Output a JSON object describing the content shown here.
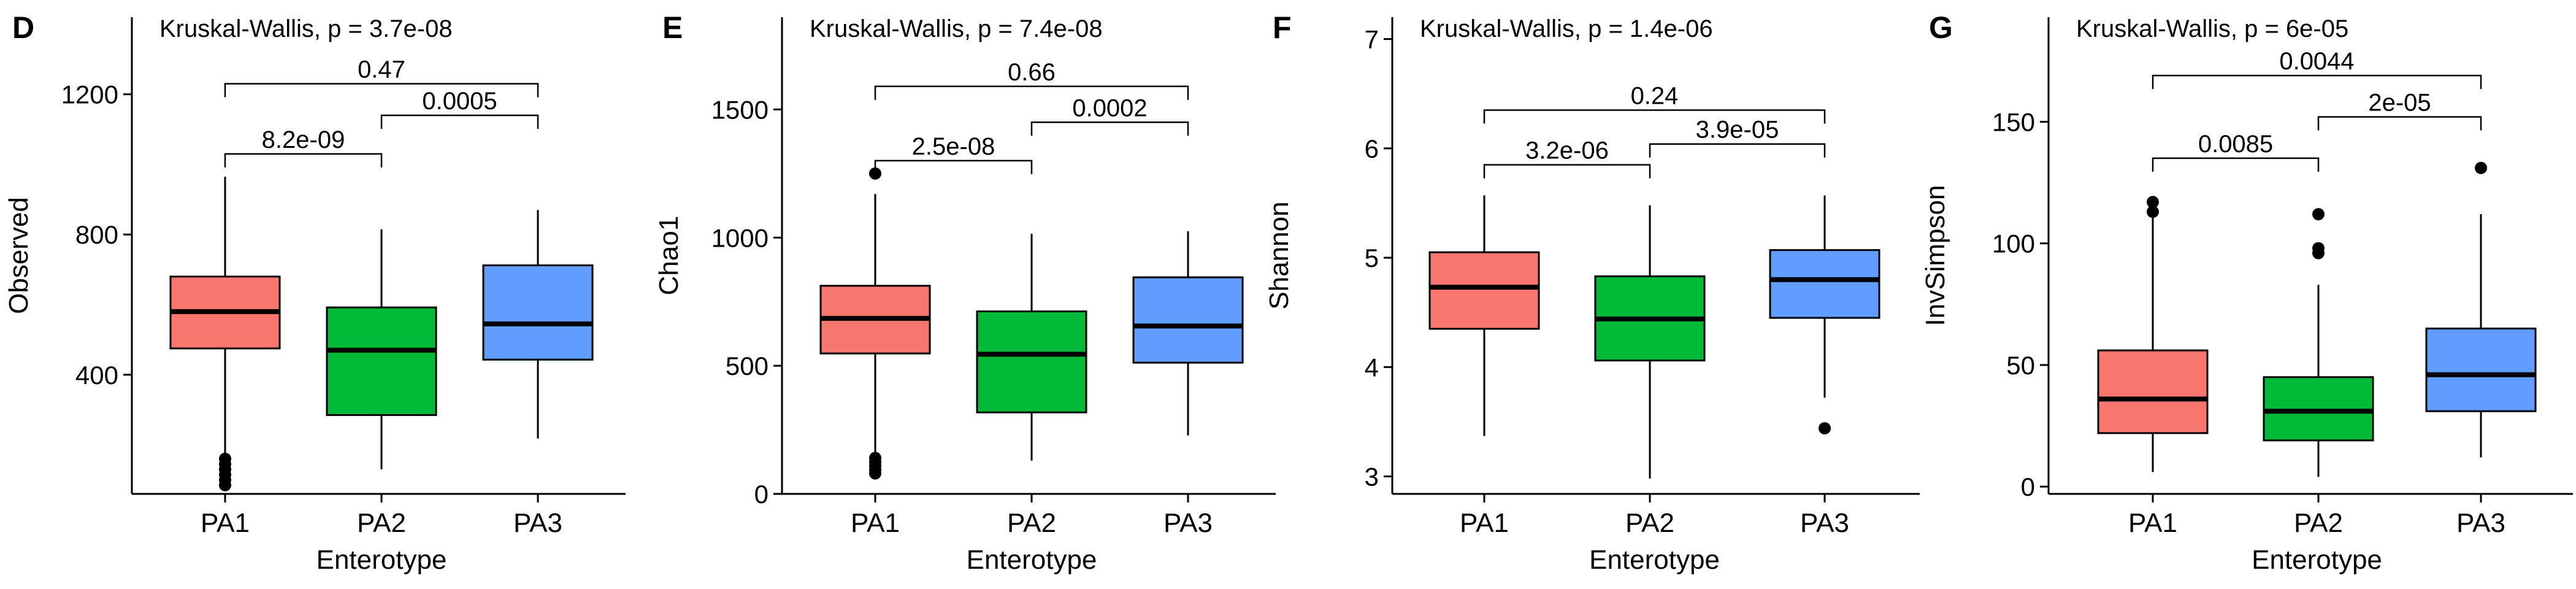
{
  "chart_data": [
    {
      "type": "box",
      "panel_label": "D",
      "title": "Kruskal-Wallis, p = 3.7e-08",
      "xlabel": "Enterotype",
      "ylabel": "Observed",
      "categories": [
        "PA1",
        "PA2",
        "PA3"
      ],
      "ylim": [
        60,
        1420
      ],
      "yticks": [
        400,
        800,
        1200
      ],
      "boxes": [
        {
          "q1": 475,
          "median": 580,
          "q3": 680,
          "whisker_low": 150,
          "whisker_high": 965,
          "outliers": [
            85,
            100,
            115,
            130,
            145,
            160
          ]
        },
        {
          "q1": 285,
          "median": 470,
          "q3": 592,
          "whisker_low": 130,
          "whisker_high": 815,
          "outliers": []
        },
        {
          "q1": 443,
          "median": 545,
          "q3": 712,
          "whisker_low": 218,
          "whisker_high": 870,
          "outliers": []
        }
      ],
      "comparisons": [
        {
          "from": 0,
          "to": 1,
          "y": 1030,
          "label": "8.2e-09"
        },
        {
          "from": 1,
          "to": 2,
          "y": 1140,
          "label": "0.0005"
        },
        {
          "from": 0,
          "to": 2,
          "y": 1230,
          "label": "0.47"
        }
      ]
    },
    {
      "type": "box",
      "panel_label": "E",
      "title": "Kruskal-Wallis, p = 7.4e-08",
      "xlabel": "Enterotype",
      "ylabel": "Chao1",
      "categories": [
        "PA1",
        "PA2",
        "PA3"
      ],
      "ylim": [
        0,
        1860
      ],
      "yticks": [
        0,
        500,
        1000,
        1500
      ],
      "boxes": [
        {
          "q1": 548,
          "median": 685,
          "q3": 812,
          "whisker_low": 150,
          "whisker_high": 1170,
          "outliers": [
            80,
            95,
            110,
            125,
            140,
            1250
          ]
        },
        {
          "q1": 318,
          "median": 545,
          "q3": 712,
          "whisker_low": 130,
          "whisker_high": 1015,
          "outliers": []
        },
        {
          "q1": 512,
          "median": 655,
          "q3": 845,
          "whisker_low": 228,
          "whisker_high": 1025,
          "outliers": []
        }
      ],
      "comparisons": [
        {
          "from": 0,
          "to": 1,
          "y": 1300,
          "label": "2.5e-08"
        },
        {
          "from": 1,
          "to": 2,
          "y": 1450,
          "label": "0.0002"
        },
        {
          "from": 0,
          "to": 2,
          "y": 1590,
          "label": "0.66"
        }
      ]
    },
    {
      "type": "box",
      "panel_label": "F",
      "title": "Kruskal-Wallis, p = 1.4e-06",
      "xlabel": "Enterotype",
      "ylabel": "Shannon",
      "categories": [
        "PA1",
        "PA2",
        "PA3"
      ],
      "ylim": [
        2.84,
        7.2
      ],
      "yticks": [
        3,
        4,
        5,
        6,
        7
      ],
      "boxes": [
        {
          "q1": 4.35,
          "median": 4.73,
          "q3": 5.05,
          "whisker_low": 3.37,
          "whisker_high": 5.57,
          "outliers": []
        },
        {
          "q1": 4.06,
          "median": 4.44,
          "q3": 4.83,
          "whisker_low": 2.98,
          "whisker_high": 5.48,
          "outliers": []
        },
        {
          "q1": 4.45,
          "median": 4.8,
          "q3": 5.07,
          "whisker_low": 3.72,
          "whisker_high": 5.57,
          "outliers": [
            3.44
          ]
        }
      ],
      "comparisons": [
        {
          "from": 0,
          "to": 1,
          "y": 5.85,
          "label": "3.2e-06"
        },
        {
          "from": 1,
          "to": 2,
          "y": 6.04,
          "label": "3.9e-05"
        },
        {
          "from": 0,
          "to": 2,
          "y": 6.35,
          "label": "0.24"
        }
      ]
    },
    {
      "type": "box",
      "panel_label": "G",
      "title": "Kruskal-Wallis, p = 6e-05",
      "xlabel": "Enterotype",
      "ylabel": "InvSimpson",
      "categories": [
        "PA1",
        "PA2",
        "PA3"
      ],
      "ylim": [
        -3,
        193
      ],
      "yticks": [
        0,
        50,
        100,
        150
      ],
      "boxes": [
        {
          "q1": 22,
          "median": 36,
          "q3": 56,
          "whisker_low": 6,
          "whisker_high": 113,
          "outliers": [
            113,
            117
          ]
        },
        {
          "q1": 19,
          "median": 31,
          "q3": 45,
          "whisker_low": 4,
          "whisker_high": 83,
          "outliers": [
            96,
            98,
            112
          ]
        },
        {
          "q1": 31,
          "median": 46,
          "q3": 65,
          "whisker_low": 12,
          "whisker_high": 112,
          "outliers": [
            131
          ]
        }
      ],
      "comparisons": [
        {
          "from": 0,
          "to": 1,
          "y": 135,
          "label": "0.0085"
        },
        {
          "from": 1,
          "to": 2,
          "y": 152,
          "label": "2e-05"
        },
        {
          "from": 0,
          "to": 2,
          "y": 169,
          "label": "0.0044"
        }
      ]
    }
  ],
  "colors": {
    "groups": [
      "#F8766D",
      "#00BA38",
      "#619CFF"
    ],
    "axis": "#000000"
  }
}
